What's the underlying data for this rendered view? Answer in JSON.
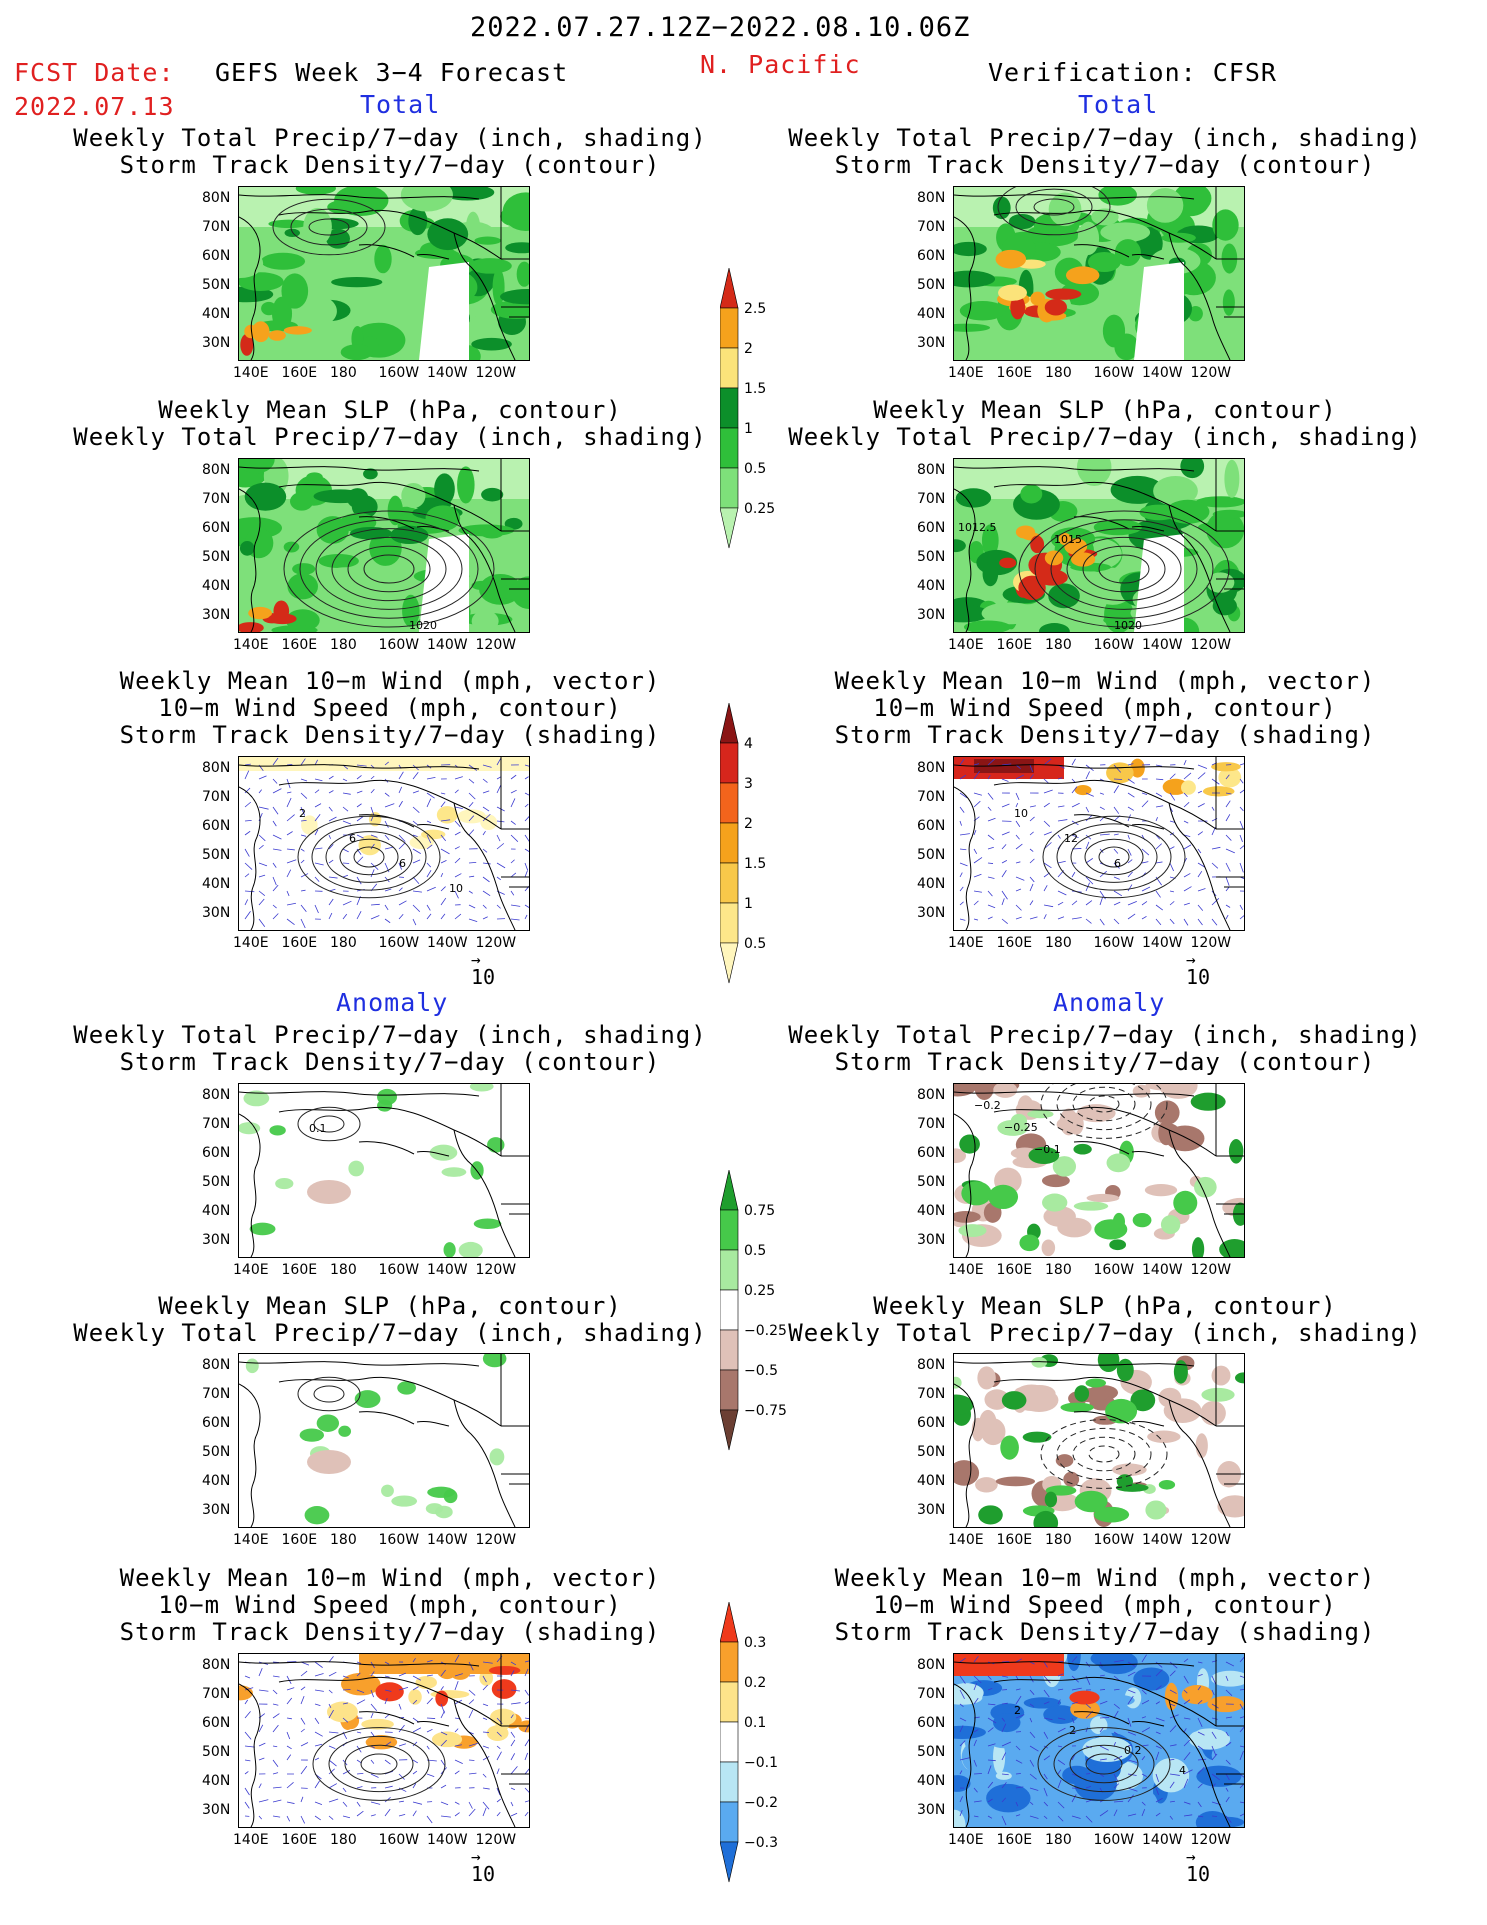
{
  "header": {
    "date_range": "2022.07.27.12Z−2022.08.10.06Z",
    "fcst_label": "FCST Date:",
    "fcst_date": "2022.07.13",
    "model": "GEFS Week 3−4 Forecast",
    "region": "N. Pacific",
    "verification": "Verification: CFSR"
  },
  "sections": {
    "total": "Total",
    "anomaly": "Anomaly"
  },
  "titles": {
    "precip_track": [
      "Weekly Total Precip/7−day (inch, shading)",
      "Storm Track Density/7−day (contour)"
    ],
    "slp_precip": [
      "Weekly Mean SLP (hPa, contour)",
      "Weekly Total Precip/7−day (inch, shading)"
    ],
    "wind_track": [
      "Weekly Mean 10−m Wind (mph, vector)",
      "10−m Wind Speed (mph, contour)",
      "Storm Track Density/7−day (shading)"
    ]
  },
  "axes": {
    "lat_labels": [
      "80N",
      "70N",
      "60N",
      "50N",
      "40N",
      "30N"
    ],
    "lon_labels": [
      "140E",
      "160E",
      "180",
      "160W",
      "140W",
      "120W"
    ]
  },
  "vector_ref": "10",
  "contour_labels": {
    "fcst_slp": "1020",
    "verif_slp": [
      "1012.5",
      "1015",
      "1020"
    ],
    "fcst_wind": [
      "2",
      "6",
      "6",
      "10"
    ],
    "verif_wind": [
      "10",
      "12",
      "6"
    ],
    "fcst_anom_track": "0.1",
    "verif_anom_track": [
      "−0.2",
      "−0.25",
      "−0.1"
    ],
    "verif_anom_wind": [
      "2",
      "2",
      "0.2",
      "4"
    ]
  },
  "colorbars": {
    "precip": {
      "labels": [
        "2.5",
        "2",
        "1.5",
        "1",
        "0.5",
        "0.25"
      ],
      "colors": [
        "#d42a18",
        "#f5a21c",
        "#fbe37a",
        "#0c8f2a",
        "#2fbf3a",
        "#7ee07a",
        "#b9f2b0"
      ]
    },
    "track": {
      "labels": [
        "4",
        "3",
        "2",
        "1.5",
        "1",
        "0.5"
      ],
      "colors": [
        "#8a1515",
        "#d6261c",
        "#f3641c",
        "#f5a21c",
        "#f8c84a",
        "#fde78a",
        "#fff6bd"
      ]
    },
    "precip_anom": {
      "labels": [
        "0.75",
        "0.5",
        "0.25",
        "−0.25",
        "−0.5",
        "−0.75"
      ],
      "colors": [
        "#1f9e2e",
        "#46c94a",
        "#a8eaa0",
        "#ffffff",
        "#dfc1b8",
        "#a8776c",
        "#6b3f33"
      ]
    },
    "track_anom": {
      "labels": [
        "0.3",
        "0.2",
        "0.1",
        "−0.1",
        "−0.2",
        "−0.3"
      ],
      "colors": [
        "#ef3a1c",
        "#f8a02c",
        "#fde38a",
        "#ffffff",
        "#b8e6f4",
        "#5aaaf0",
        "#1f6fd8"
      ]
    }
  }
}
